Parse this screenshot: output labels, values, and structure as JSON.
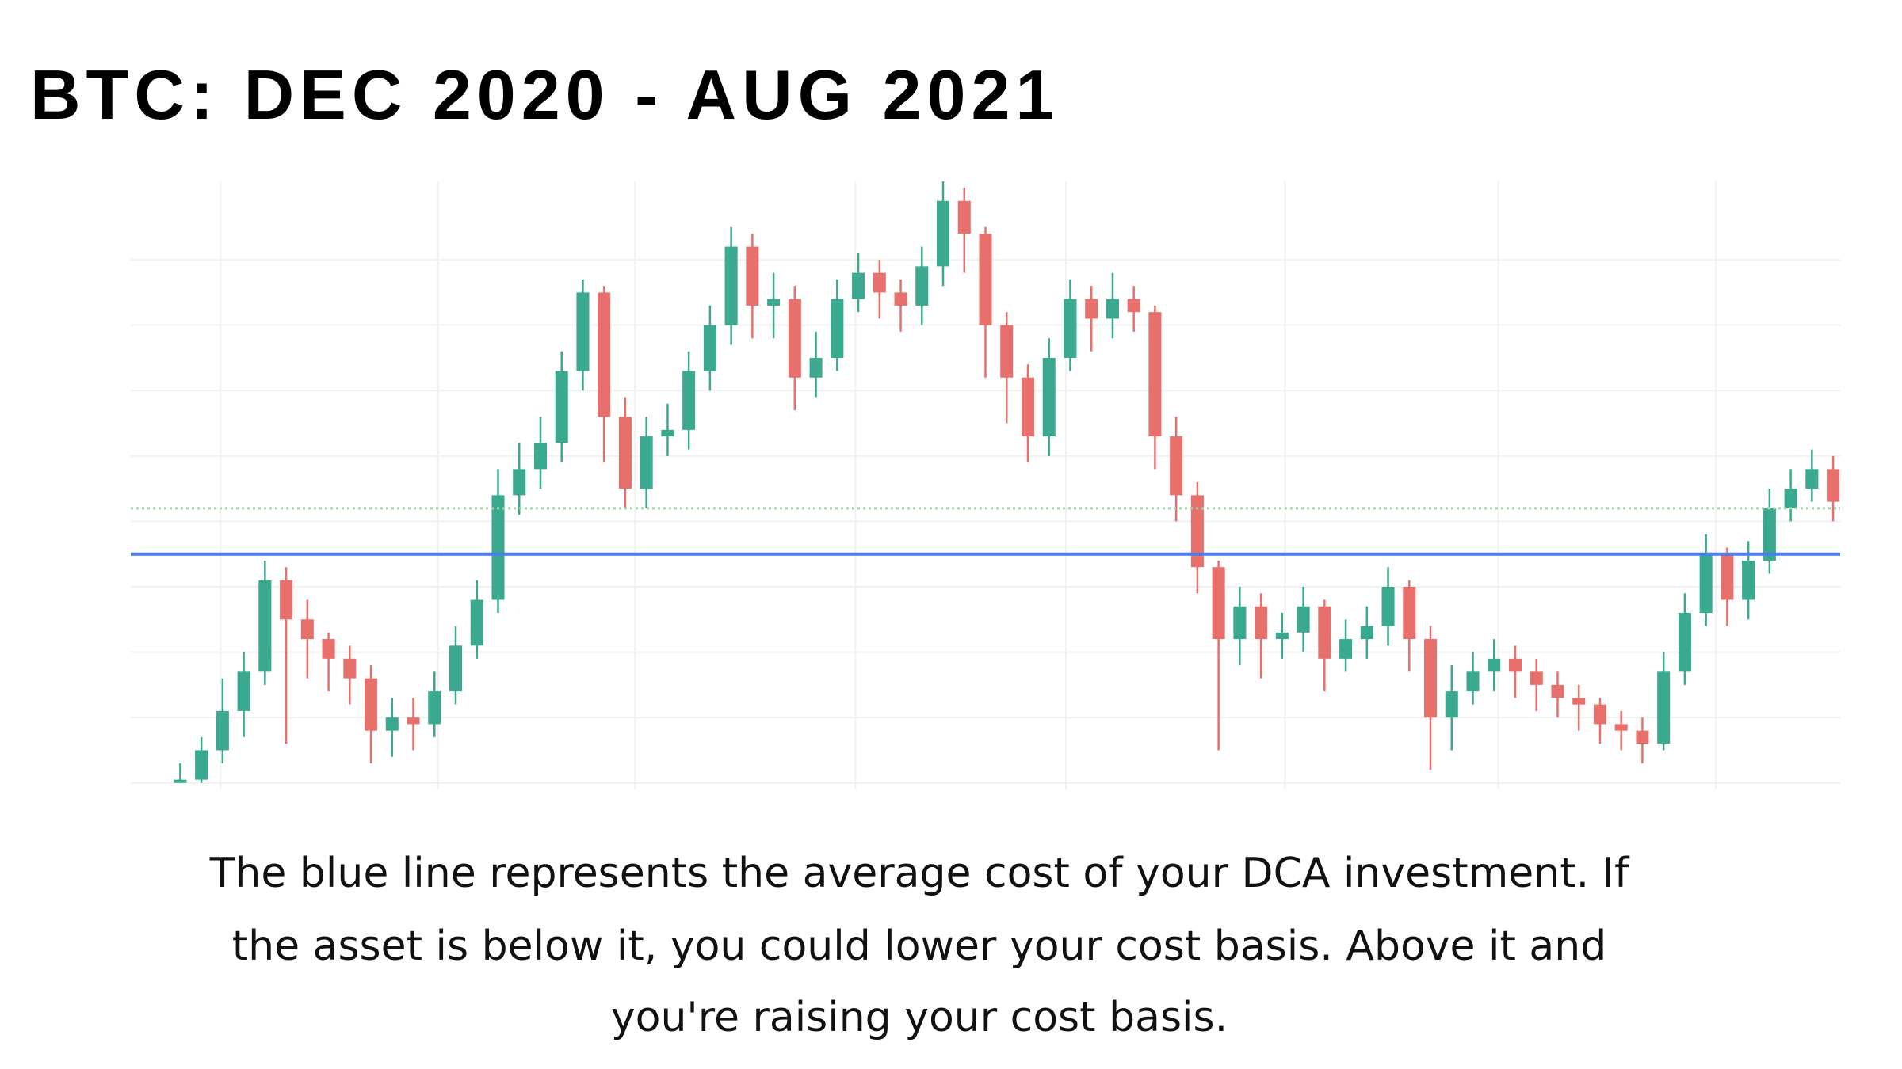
{
  "chart_data": {
    "type": "candlestick",
    "title": "BTC: DEC 2020 - AUG 2021",
    "caption": [
      "The blue line represents the average cost of your DCA investment. If",
      "the asset is below it, you could lower your cost basis. Above it and",
      "you're raising your cost basis."
    ],
    "xlim": [
      0,
      242
    ],
    "xticks": [
      12.7,
      43.5,
      71.4,
      102.6,
      132.4,
      163.4,
      193.6,
      224.4
    ],
    "ylim": [
      -0.1,
      9.2
    ],
    "yticks": [
      0,
      1,
      2,
      3,
      4,
      5,
      6,
      7,
      8
    ],
    "grid": true,
    "up_color": "#3aa98f",
    "down_color": "#e8706c",
    "hlines": [
      {
        "value": 3.5,
        "color": "#4a7de8",
        "style": "solid"
      },
      {
        "value": 4.2,
        "color": "#9fd3a8",
        "style": "dotted"
      }
    ],
    "x": [
      7,
      10,
      13,
      16,
      19,
      22,
      25,
      28,
      31,
      34,
      37,
      40,
      43,
      46,
      49,
      52,
      55,
      58,
      61,
      64,
      67,
      70,
      73,
      76,
      79,
      82,
      85,
      88,
      91,
      94,
      97,
      100,
      103,
      106,
      109,
      112,
      115,
      118,
      121,
      124,
      127,
      130,
      133,
      136,
      139,
      142,
      145,
      148,
      151,
      154,
      157,
      160,
      163,
      166,
      169,
      172,
      175,
      178,
      181,
      184,
      187,
      190,
      193,
      196,
      199,
      202,
      205,
      208,
      211,
      214,
      217,
      220,
      223,
      226,
      229,
      232,
      235,
      238,
      241
    ],
    "open": [
      0.0,
      0.05,
      0.5,
      1.1,
      1.7,
      3.1,
      2.5,
      2.2,
      1.9,
      1.6,
      0.8,
      1.0,
      0.9,
      1.4,
      2.1,
      2.8,
      4.4,
      4.8,
      5.2,
      6.3,
      7.5,
      5.6,
      4.5,
      5.3,
      5.4,
      6.3,
      7.0,
      8.2,
      7.3,
      7.4,
      6.2,
      6.5,
      7.4,
      7.8,
      7.5,
      7.3,
      7.9,
      8.9,
      8.4,
      7.0,
      6.2,
      5.3,
      6.5,
      7.4,
      7.1,
      7.4,
      7.2,
      5.3,
      4.4,
      3.3,
      2.2,
      2.7,
      2.2,
      2.3,
      2.7,
      1.9,
      2.2,
      2.4,
      3.0,
      2.2,
      1.0,
      1.4,
      1.7,
      1.9,
      1.7,
      1.5,
      1.3,
      1.2,
      0.9,
      0.8,
      0.6,
      1.7,
      2.6,
      3.5,
      2.8,
      3.4,
      4.2,
      4.5,
      4.8
    ],
    "high": [
      0.3,
      0.7,
      1.6,
      2.0,
      3.4,
      3.3,
      2.8,
      2.3,
      2.1,
      1.8,
      1.3,
      1.3,
      1.7,
      2.4,
      3.1,
      4.8,
      5.2,
      5.6,
      6.6,
      7.7,
      7.6,
      5.9,
      5.6,
      5.8,
      6.6,
      7.3,
      8.5,
      8.4,
      7.8,
      7.6,
      6.9,
      7.7,
      8.1,
      8.0,
      7.7,
      8.2,
      9.2,
      9.1,
      8.5,
      7.2,
      6.4,
      6.8,
      7.7,
      7.6,
      7.8,
      7.6,
      7.3,
      5.6,
      4.6,
      3.4,
      3.0,
      2.9,
      2.6,
      3.0,
      2.8,
      2.5,
      2.7,
      3.3,
      3.1,
      2.4,
      1.8,
      2.0,
      2.2,
      2.1,
      1.9,
      1.7,
      1.5,
      1.3,
      1.1,
      1.0,
      2.0,
      2.9,
      3.8,
      3.6,
      3.7,
      4.5,
      4.8,
      5.1,
      5.0
    ],
    "low": [
      0.0,
      0.0,
      0.3,
      0.7,
      1.5,
      0.6,
      1.6,
      1.4,
      1.2,
      0.3,
      0.4,
      0.5,
      0.7,
      1.2,
      1.9,
      2.6,
      4.1,
      4.5,
      4.9,
      6.0,
      4.9,
      4.2,
      4.2,
      5.0,
      5.1,
      6.0,
      6.7,
      6.8,
      6.8,
      5.7,
      5.9,
      6.3,
      7.2,
      7.1,
      6.9,
      7.0,
      7.6,
      7.8,
      6.2,
      5.5,
      4.9,
      5.0,
      6.3,
      6.6,
      6.8,
      6.9,
      4.8,
      4.0,
      2.9,
      0.5,
      1.8,
      1.6,
      1.9,
      2.0,
      1.4,
      1.7,
      1.9,
      2.1,
      1.7,
      0.2,
      0.5,
      1.2,
      1.4,
      1.3,
      1.1,
      1.0,
      0.8,
      0.6,
      0.5,
      0.3,
      0.5,
      1.5,
      2.4,
      2.4,
      2.5,
      3.2,
      4.0,
      4.3,
      4.0
    ],
    "close": [
      0.05,
      0.5,
      1.1,
      1.7,
      3.1,
      2.5,
      2.2,
      1.9,
      1.6,
      0.8,
      1.0,
      0.9,
      1.4,
      2.1,
      2.8,
      4.4,
      4.8,
      5.2,
      6.3,
      7.5,
      5.6,
      4.5,
      5.3,
      5.4,
      6.3,
      7.0,
      8.2,
      7.3,
      7.4,
      6.2,
      6.5,
      7.4,
      7.8,
      7.5,
      7.3,
      7.9,
      8.9,
      8.4,
      7.0,
      6.2,
      5.3,
      6.5,
      7.4,
      7.1,
      7.4,
      7.2,
      5.3,
      4.4,
      3.3,
      2.2,
      2.7,
      2.2,
      2.3,
      2.7,
      1.9,
      2.2,
      2.4,
      3.0,
      2.2,
      1.0,
      1.4,
      1.7,
      1.9,
      1.7,
      1.5,
      1.3,
      1.2,
      0.9,
      0.8,
      0.6,
      1.7,
      2.6,
      3.5,
      2.8,
      3.4,
      4.2,
      4.5,
      4.8,
      4.3
    ]
  }
}
